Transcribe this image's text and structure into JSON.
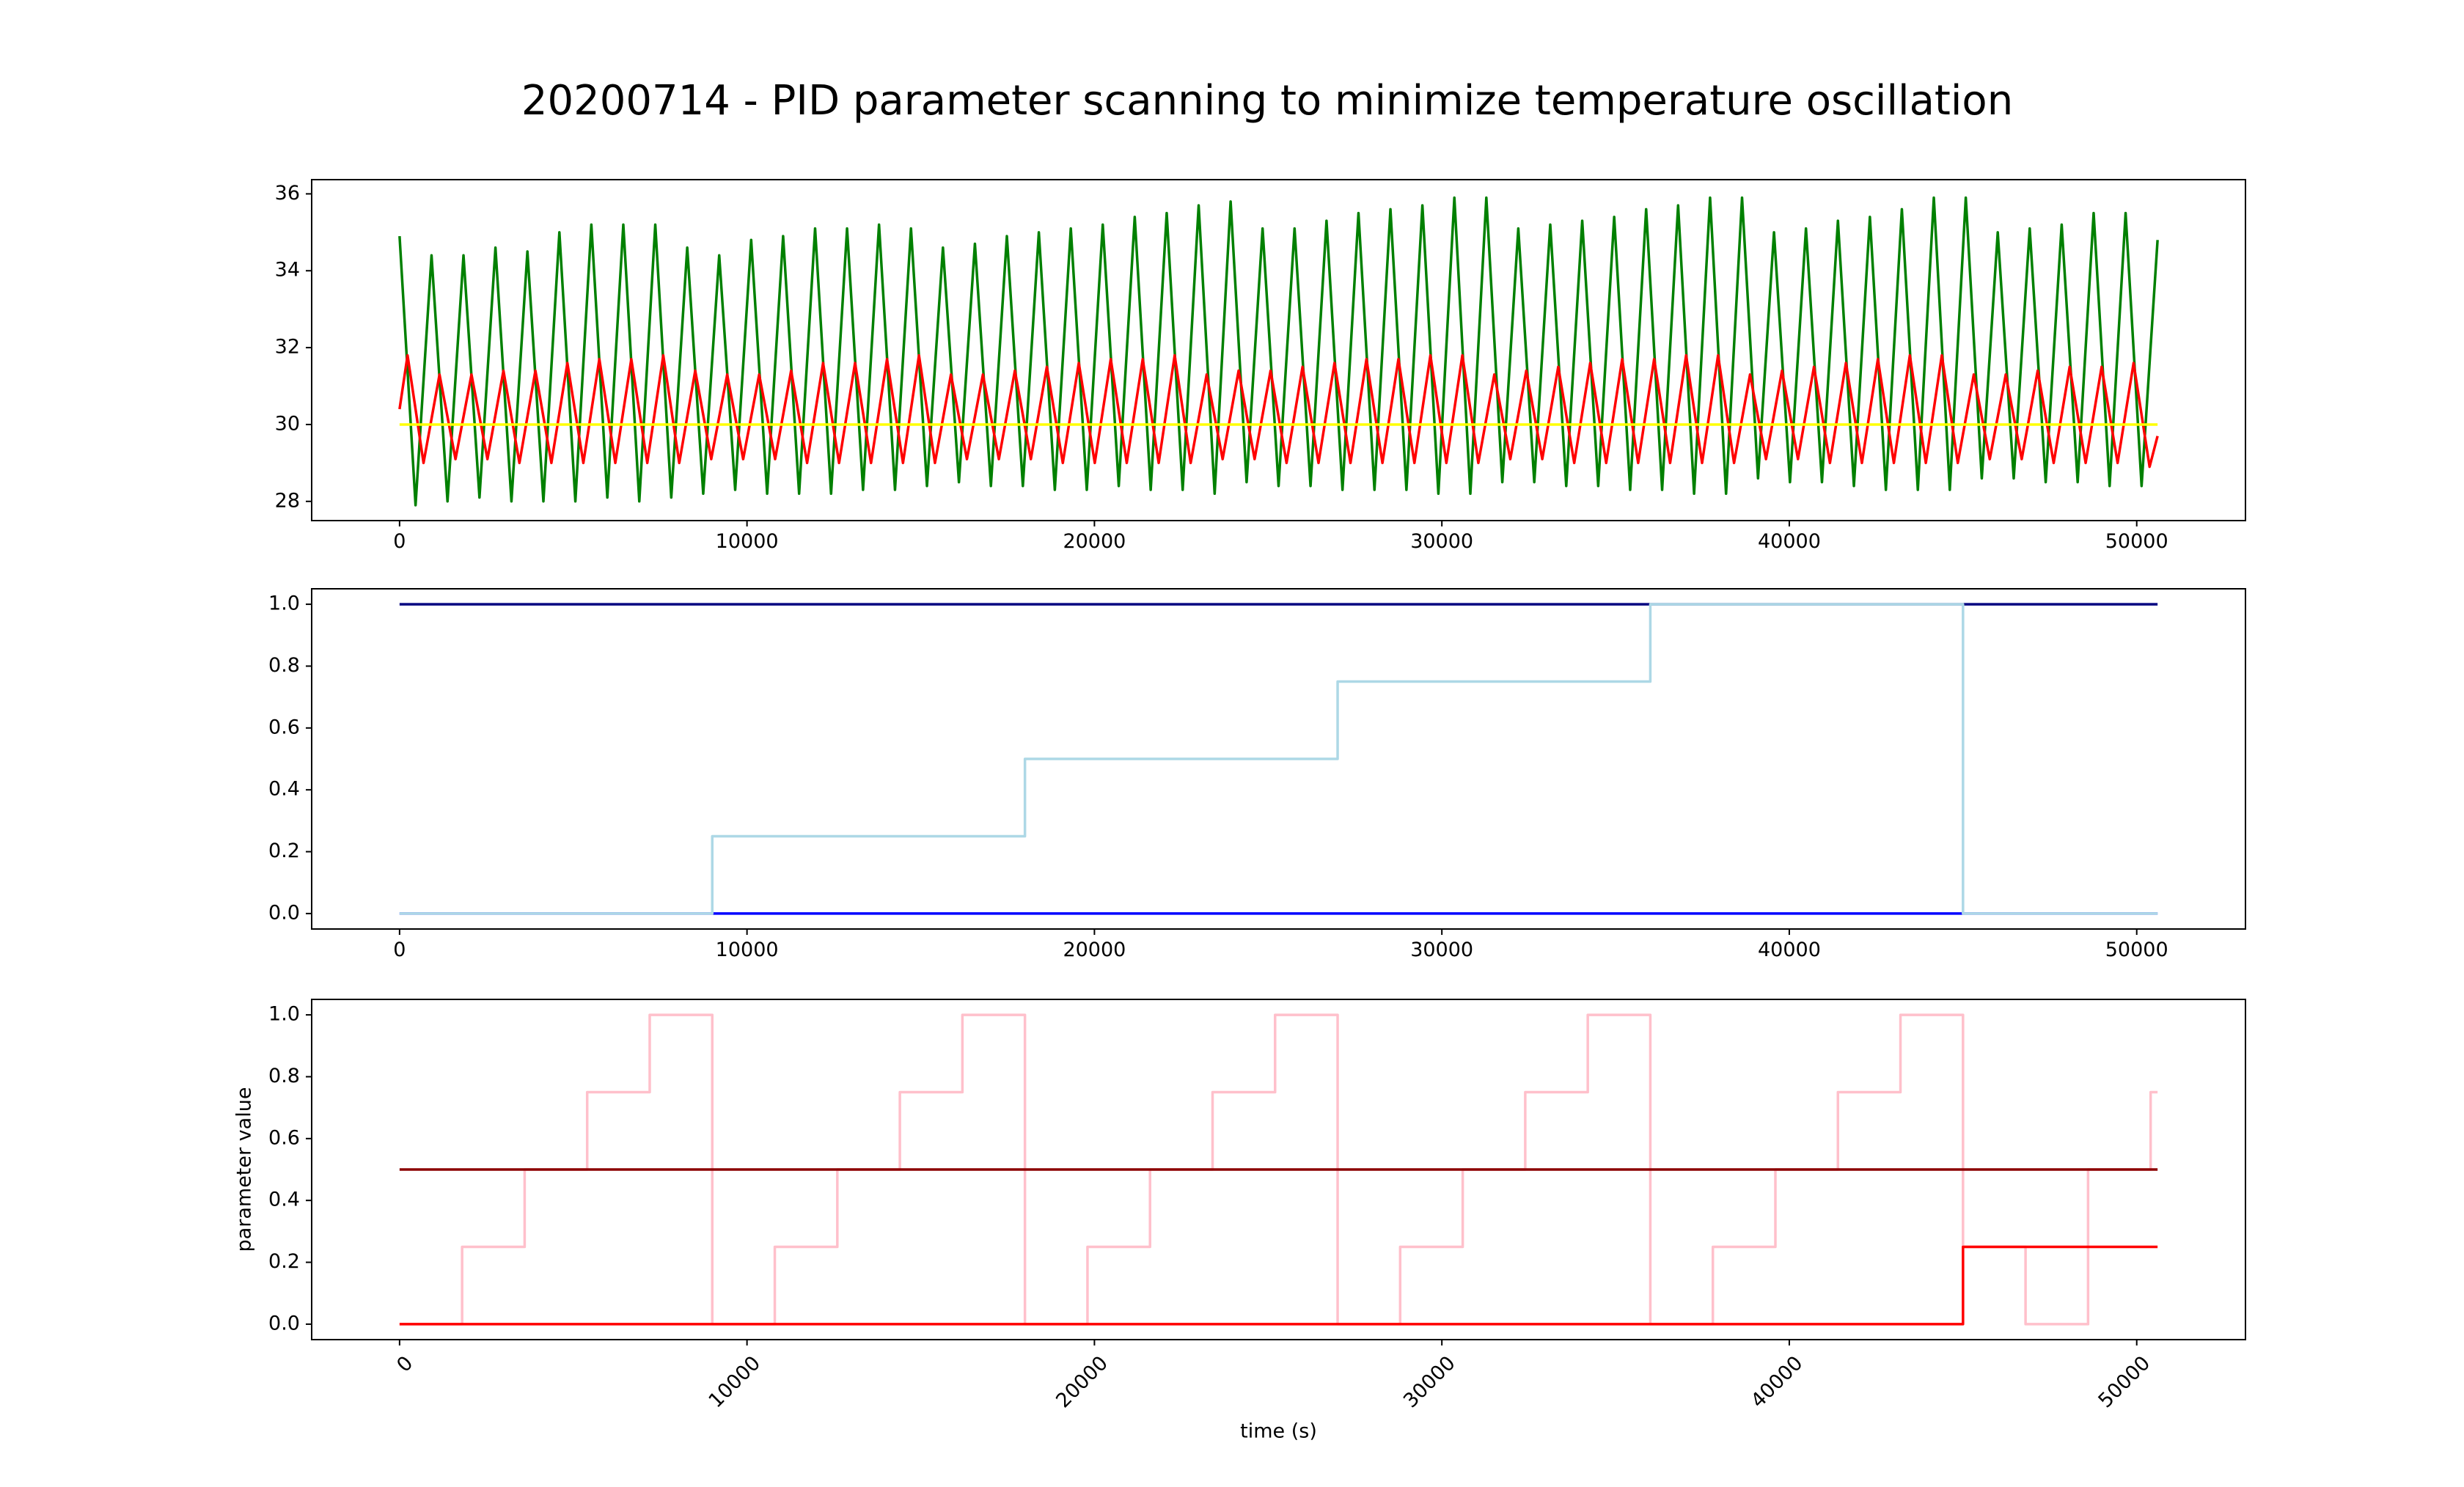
{
  "title": "20200714 - PID parameter scanning to minimize temperature oscillation",
  "chart_data": [
    {
      "type": "line",
      "xlim": [
        -2530,
        53130
      ],
      "ylim": [
        27.5,
        36.37
      ],
      "xticks": [
        0,
        10000,
        20000,
        30000,
        40000,
        50000
      ],
      "yticks": [
        28,
        30,
        32,
        34,
        36
      ],
      "series": [
        {
          "color": "green",
          "x": [
            0,
            460,
            920,
            1380,
            1840,
            2300,
            2760,
            3220,
            3680,
            4140,
            4600,
            5060,
            5520,
            5980,
            6440,
            6900,
            7360,
            7820,
            8280,
            8740,
            9200,
            9660,
            10120,
            10580,
            11040,
            11500,
            11960,
            12420,
            12880,
            13340,
            13800,
            14260,
            14720,
            15180,
            15640,
            16100,
            16560,
            17020,
            17480,
            17940,
            18400,
            18860,
            19320,
            19780,
            20240,
            20700,
            21160,
            21620,
            22080,
            22540,
            23000,
            23460,
            23920,
            24380,
            24840,
            25300,
            25760,
            26220,
            26680,
            27140,
            27600,
            28060,
            28520,
            28980,
            29440,
            29900,
            30360,
            30820,
            31280,
            31740,
            32200,
            32660,
            33120,
            33580,
            34040,
            34500,
            34960,
            35420,
            35880,
            36340,
            36800,
            37260,
            37720,
            38180,
            38640,
            39100,
            39560,
            40020,
            40480,
            40940,
            41400,
            41860,
            42320,
            42780,
            43240,
            43700,
            44160,
            44620,
            45080,
            45540,
            46000,
            46460,
            46920,
            47380,
            47840,
            48300,
            48760,
            49220,
            49680,
            50140,
            50600
          ],
          "values": [
            34.9,
            27.9,
            34.4,
            28.0,
            34.4,
            28.1,
            34.6,
            28.0,
            34.5,
            28.0,
            35.0,
            28.0,
            35.2,
            28.1,
            35.2,
            28.0,
            35.2,
            28.1,
            34.6,
            28.2,
            34.4,
            28.3,
            34.8,
            28.2,
            34.9,
            28.2,
            35.1,
            28.2,
            35.1,
            28.3,
            35.2,
            28.3,
            35.1,
            28.4,
            34.6,
            28.5,
            34.7,
            28.4,
            34.9,
            28.4,
            35.0,
            28.3,
            35.1,
            28.3,
            35.2,
            28.4,
            35.4,
            28.3,
            35.5,
            28.3,
            35.7,
            28.2,
            35.8,
            28.5,
            35.1,
            28.4,
            35.1,
            28.4,
            35.3,
            28.3,
            35.5,
            28.3,
            35.6,
            28.3,
            35.7,
            28.2,
            35.9,
            28.2,
            35.9,
            28.5,
            35.1,
            28.5,
            35.2,
            28.4,
            35.3,
            28.4,
            35.4,
            28.3,
            35.6,
            28.3,
            35.7,
            28.2,
            35.9,
            28.2,
            35.9,
            28.6,
            35.0,
            28.5,
            35.1,
            28.5,
            35.3,
            28.4,
            35.4,
            28.3,
            35.6,
            28.3,
            35.9,
            28.3,
            35.9,
            28.6,
            35.0,
            28.6,
            35.1,
            28.5,
            35.2,
            28.5,
            35.5,
            28.4,
            35.5,
            28.4,
            34.8
          ]
        },
        {
          "color": "red",
          "x": [
            0,
            230,
            690,
            1150,
            1610,
            2070,
            2530,
            2990,
            3450,
            3910,
            4370,
            4830,
            5290,
            5750,
            6210,
            6670,
            7130,
            7590,
            8050,
            8510,
            8970,
            9430,
            9890,
            10350,
            10810,
            11270,
            11730,
            12190,
            12650,
            13110,
            13570,
            14030,
            14490,
            14950,
            15410,
            15870,
            16330,
            16790,
            17250,
            17710,
            18170,
            18630,
            19090,
            19550,
            20010,
            20470,
            20930,
            21390,
            21850,
            22310,
            22770,
            23230,
            23690,
            24150,
            24610,
            25070,
            25530,
            25990,
            26450,
            26910,
            27370,
            27830,
            28290,
            28750,
            29210,
            29670,
            30130,
            30590,
            31050,
            31510,
            31970,
            32430,
            32890,
            33350,
            33810,
            34270,
            34730,
            35190,
            35650,
            36110,
            36570,
            37030,
            37490,
            37950,
            38410,
            38870,
            39330,
            39790,
            40250,
            40710,
            41170,
            41630,
            42090,
            42550,
            43010,
            43470,
            43930,
            44390,
            44850,
            45310,
            45770,
            46230,
            46690,
            47150,
            47610,
            48070,
            48530,
            48990,
            49450,
            49910,
            50370,
            50600
          ],
          "values": [
            30.4,
            31.8,
            29.0,
            31.3,
            29.1,
            31.3,
            29.1,
            31.4,
            29.0,
            31.4,
            29.0,
            31.6,
            29.0,
            31.7,
            29.0,
            31.7,
            29.0,
            31.8,
            29.0,
            31.4,
            29.1,
            31.3,
            29.1,
            31.3,
            29.1,
            31.4,
            29.0,
            31.6,
            29.0,
            31.6,
            29.0,
            31.7,
            29.0,
            31.8,
            29.0,
            31.3,
            29.1,
            31.3,
            29.1,
            31.4,
            29.1,
            31.5,
            29.0,
            31.6,
            29.0,
            31.7,
            29.0,
            31.7,
            29.0,
            31.8,
            29.0,
            31.3,
            29.1,
            31.4,
            29.1,
            31.4,
            29.0,
            31.5,
            29.0,
            31.6,
            29.0,
            31.7,
            29.0,
            31.7,
            29.0,
            31.8,
            29.0,
            31.8,
            29.0,
            31.3,
            29.1,
            31.4,
            29.1,
            31.5,
            29.0,
            31.6,
            29.0,
            31.7,
            29.0,
            31.7,
            29.0,
            31.8,
            29.0,
            31.8,
            29.0,
            31.3,
            29.1,
            31.4,
            29.1,
            31.5,
            29.0,
            31.6,
            29.0,
            31.7,
            29.0,
            31.8,
            29.0,
            31.8,
            29.0,
            31.3,
            29.1,
            31.3,
            29.1,
            31.4,
            29.0,
            31.5,
            29.0,
            31.5,
            29.0,
            31.6,
            28.9,
            29.7
          ]
        },
        {
          "color": "yellow",
          "x": [
            0,
            50600
          ],
          "values": [
            30,
            30
          ]
        }
      ]
    },
    {
      "type": "line",
      "xlim": [
        -2530,
        53130
      ],
      "ylim": [
        -0.05,
        1.05
      ],
      "xticks": [
        0,
        10000,
        20000,
        30000,
        40000,
        50000
      ],
      "yticks": [
        {
          "value": 0,
          "label": "0.0"
        },
        0.2,
        0.4,
        0.6,
        0.8,
        {
          "value": 1,
          "label": "1.0"
        }
      ],
      "series": [
        {
          "color": "navy",
          "step": "post",
          "x": [
            0,
            50600
          ],
          "values": [
            1,
            1
          ]
        },
        {
          "color": "blue",
          "step": "post",
          "x": [
            0,
            50600
          ],
          "values": [
            0,
            0
          ]
        },
        {
          "color": "lightblue",
          "step": "post",
          "x": [
            0,
            9000,
            18000,
            27000,
            36000,
            45000,
            50600
          ],
          "values": [
            0,
            0.25,
            0.5,
            0.75,
            1,
            0,
            0
          ]
        }
      ]
    },
    {
      "type": "line",
      "xlim": [
        -2530,
        53130
      ],
      "ylim": [
        -0.05,
        1.05
      ],
      "xticks": [
        0,
        10000,
        20000,
        30000,
        40000,
        50000
      ],
      "xtick_rotation": 45,
      "yticks": [
        {
          "value": 0,
          "label": "0.0"
        },
        0.2,
        0.4,
        0.6,
        0.8,
        {
          "value": 1,
          "label": "1.0"
        }
      ],
      "xlabel": "time (s)",
      "ylabel": "parameter value",
      "series": [
        {
          "color": "pink",
          "step": "post",
          "x": [
            0,
            1800,
            3600,
            5400,
            7200,
            9000,
            10800,
            12600,
            14400,
            16200,
            18000,
            19800,
            21600,
            23400,
            25200,
            27000,
            28800,
            30600,
            32400,
            34200,
            36000,
            37800,
            39600,
            41400,
            43200,
            45000,
            46800,
            48600,
            50400,
            50600
          ],
          "values": [
            0,
            0.25,
            0.5,
            0.75,
            1,
            0,
            0.25,
            0.5,
            0.75,
            1,
            0,
            0.25,
            0.5,
            0.75,
            1,
            0,
            0.25,
            0.5,
            0.75,
            1,
            0,
            0.25,
            0.5,
            0.75,
            1,
            0.25,
            0,
            0.5,
            0.75,
            0.75
          ]
        },
        {
          "color": "darkred",
          "step": "post",
          "x": [
            0,
            50600
          ],
          "values": [
            0.5,
            0.5
          ]
        },
        {
          "color": "red",
          "step": "post",
          "x": [
            0,
            45000,
            50600
          ],
          "values": [
            0,
            0.25,
            0.25
          ]
        }
      ]
    }
  ]
}
